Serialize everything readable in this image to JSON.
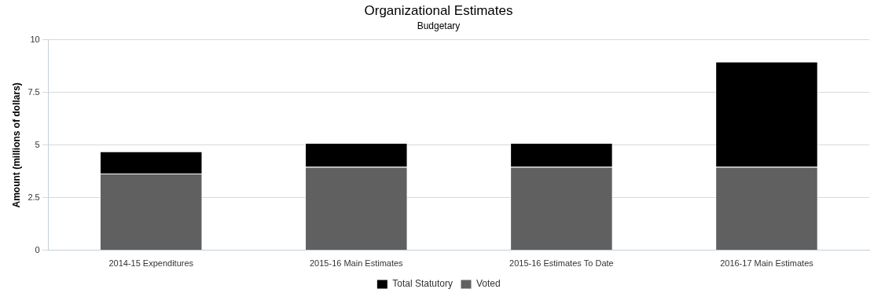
{
  "chart_data": {
    "type": "bar",
    "title": "Organizational Estimates",
    "subtitle": "Budgetary",
    "y_label": "Amount (millions of dollars)",
    "categories": [
      "2014-15 Expenditures",
      "2015-16 Main Estimates",
      "2015-16 Estimates To Date",
      "2016-17 Main Estimates"
    ],
    "series": [
      {
        "name": "Total Statutory",
        "color": "#000000",
        "values": [
          1.05,
          1.13,
          1.13,
          5.0
        ]
      },
      {
        "name": "Voted",
        "color": "#606060",
        "values": [
          3.65,
          3.97,
          3.97,
          3.97
        ]
      }
    ],
    "ylim": [
      0,
      10
    ],
    "yticks": [
      0,
      2.5,
      5,
      7.5,
      10
    ],
    "grid": true,
    "stacked": true,
    "legend": "bottom"
  }
}
